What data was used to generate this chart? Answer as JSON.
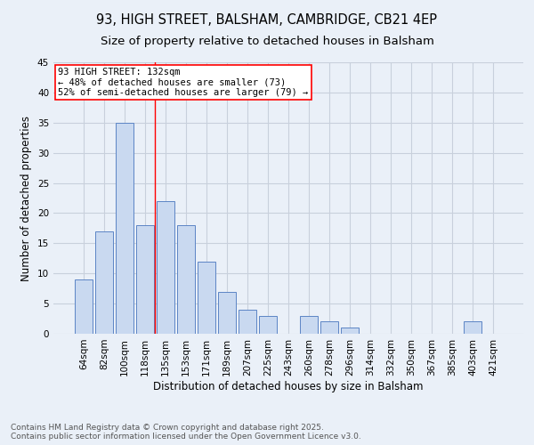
{
  "title1": "93, HIGH STREET, BALSHAM, CAMBRIDGE, CB21 4EP",
  "title2": "Size of property relative to detached houses in Balsham",
  "xlabel": "Distribution of detached houses by size in Balsham",
  "ylabel": "Number of detached properties",
  "categories": [
    "64sqm",
    "82sqm",
    "100sqm",
    "118sqm",
    "135sqm",
    "153sqm",
    "171sqm",
    "189sqm",
    "207sqm",
    "225sqm",
    "243sqm",
    "260sqm",
    "278sqm",
    "296sqm",
    "314sqm",
    "332sqm",
    "350sqm",
    "367sqm",
    "385sqm",
    "403sqm",
    "421sqm"
  ],
  "values": [
    9,
    17,
    35,
    18,
    22,
    18,
    12,
    7,
    4,
    3,
    0,
    3,
    2,
    1,
    0,
    0,
    0,
    0,
    0,
    2,
    0
  ],
  "bar_color": "#c9d9f0",
  "bar_edge_color": "#5c85c5",
  "grid_color": "#c8d0dc",
  "bg_color": "#eaf0f8",
  "red_line_x": 3.5,
  "annotation_text": "93 HIGH STREET: 132sqm\n← 48% of detached houses are smaller (73)\n52% of semi-detached houses are larger (79) →",
  "annotation_box_color": "white",
  "annotation_box_edge_color": "red",
  "ylim": [
    0,
    45
  ],
  "yticks": [
    0,
    5,
    10,
    15,
    20,
    25,
    30,
    35,
    40,
    45
  ],
  "footnote": "Contains HM Land Registry data © Crown copyright and database right 2025.\nContains public sector information licensed under the Open Government Licence v3.0.",
  "title_fontsize": 10.5,
  "subtitle_fontsize": 9.5,
  "axis_label_fontsize": 8.5,
  "tick_fontsize": 7.5,
  "annotation_fontsize": 7.5,
  "footnote_fontsize": 6.5
}
